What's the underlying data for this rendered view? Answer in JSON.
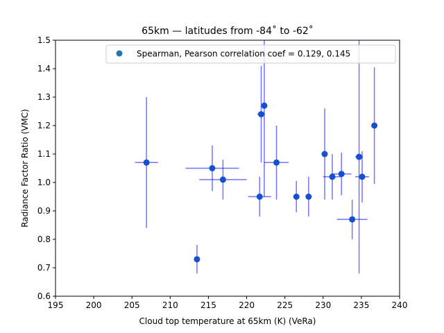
{
  "chart_data": {
    "type": "scatter",
    "title": "65km — latitudes from -84˚ to -62˚",
    "xlabel": "Cloud top temperature at 65km (K) (VeRa)",
    "ylabel": "Radiance Factor Ratio (VMC)",
    "xlim": [
      195,
      240
    ],
    "ylim": [
      0.6,
      1.5
    ],
    "xticks": [
      "195",
      "200",
      "205",
      "210",
      "215",
      "220",
      "225",
      "230",
      "235",
      "240"
    ],
    "yticks": [
      "0.6",
      "0.7",
      "0.8",
      "0.9",
      "1.0",
      "1.1",
      "1.2",
      "1.3",
      "1.4",
      "1.5"
    ],
    "grid": false,
    "legend": {
      "placement": "top-right",
      "label": "Spearman, Pearson correlation coef =  0.129,  0.145"
    },
    "colors": {
      "marker": "#1f77b4",
      "errorbar": "#0000ff",
      "overlap_marker": "#1550d0"
    },
    "series": [
      {
        "name": "Spearman, Pearson correlation coef =  0.129,  0.145",
        "points": [
          {
            "x": 206.9,
            "y": 1.07,
            "xerr": 1.5,
            "yerr": [
              0.23,
              0.23
            ]
          },
          {
            "x": 213.5,
            "y": 0.73,
            "xerr": 0.3,
            "yerr": [
              0.05,
              0.05
            ]
          },
          {
            "x": 215.5,
            "y": 1.05,
            "xerr": 3.5,
            "yerr": [
              0.08,
              0.08
            ]
          },
          {
            "x": 216.9,
            "y": 1.01,
            "xerr": 3.1,
            "yerr": [
              0.07,
              0.07
            ]
          },
          {
            "x": 221.7,
            "y": 0.95,
            "xerr": 1.5,
            "yerr": [
              0.07,
              0.07
            ]
          },
          {
            "x": 221.9,
            "y": 1.24,
            "xerr": 0.5,
            "yerr": [
              0.17,
              0.17
            ]
          },
          {
            "x": 222.3,
            "y": 1.27,
            "xerr": 0.3,
            "yerr": [
              0.32,
              0.32
            ]
          },
          {
            "x": 223.9,
            "y": 1.07,
            "xerr": 1.6,
            "yerr": [
              0.13,
              0.13
            ]
          },
          {
            "x": 226.5,
            "y": 0.95,
            "xerr": 0.4,
            "yerr": [
              0.055,
              0.055
            ]
          },
          {
            "x": 228.1,
            "y": 0.95,
            "xerr": 0.3,
            "yerr": [
              0.07,
              0.07
            ]
          },
          {
            "x": 230.2,
            "y": 1.1,
            "xerr": 0.3,
            "yerr": [
              0.16,
              0.16
            ]
          },
          {
            "x": 231.2,
            "y": 1.02,
            "xerr": 1.2,
            "yerr": [
              0.08,
              0.08
            ]
          },
          {
            "x": 232.4,
            "y": 1.03,
            "xerr": 1.3,
            "yerr": [
              0.075,
              0.075
            ]
          },
          {
            "x": 233.8,
            "y": 0.87,
            "xerr": 2.0,
            "yerr": [
              0.07,
              0.07
            ]
          },
          {
            "x": 234.7,
            "y": 1.09,
            "xerr": 0.5,
            "yerr": [
              0.41,
              0.41
            ]
          },
          {
            "x": 235.1,
            "y": 1.02,
            "xerr": 0.9,
            "yerr": [
              0.09,
              0.09
            ]
          },
          {
            "x": 236.7,
            "y": 1.2,
            "xerr": 0.3,
            "yerr": [
              0.205,
              0.205
            ]
          }
        ]
      }
    ]
  }
}
